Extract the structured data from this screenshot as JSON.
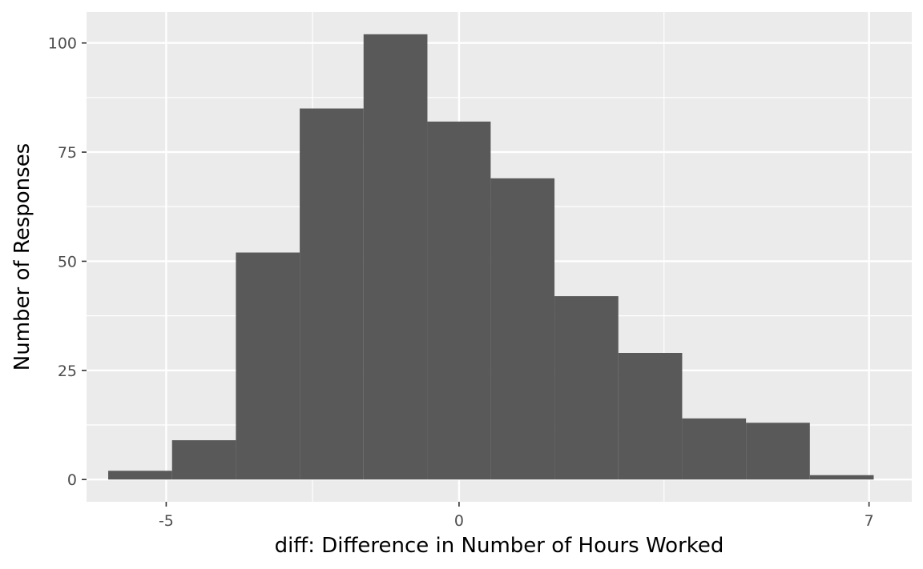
{
  "chart_data": {
    "type": "bar",
    "subtype": "histogram",
    "xlabel": "diff: Difference in Number of Hours Worked",
    "ylabel": "Number of Responses",
    "xlim": [
      -6.36,
      7.73
    ],
    "ylim": [
      -5.1,
      107.1
    ],
    "x_ticks": [
      -5,
      0,
      7
    ],
    "x_tick_labels": [
      "-5",
      "0",
      "7"
    ],
    "y_ticks": [
      0,
      25,
      50,
      75,
      100
    ],
    "y_tick_labels": [
      "0",
      "25",
      "50",
      "75",
      "100"
    ],
    "bin_width": 1.09,
    "bins": [
      {
        "x0": -5.99,
        "x1": -4.9,
        "count": 2
      },
      {
        "x0": -4.9,
        "x1": -3.81,
        "count": 9
      },
      {
        "x0": -3.81,
        "x1": -2.72,
        "count": 52
      },
      {
        "x0": -2.72,
        "x1": -1.63,
        "count": 85
      },
      {
        "x0": -1.63,
        "x1": -0.54,
        "count": 102
      },
      {
        "x0": -0.54,
        "x1": 0.54,
        "count": 82
      },
      {
        "x0": 0.54,
        "x1": 1.63,
        "count": 69
      },
      {
        "x0": 1.63,
        "x1": 2.72,
        "count": 42
      },
      {
        "x0": 2.72,
        "x1": 3.81,
        "count": 29
      },
      {
        "x0": 3.81,
        "x1": 4.9,
        "count": 14
      },
      {
        "x0": 4.9,
        "x1": 5.99,
        "count": 13
      },
      {
        "x0": 5.99,
        "x1": 7.08,
        "count": 1
      }
    ],
    "grid": true,
    "colors": {
      "panel": "#EBEBEB",
      "grid": "#FFFFFF",
      "bar": "#595959"
    }
  }
}
